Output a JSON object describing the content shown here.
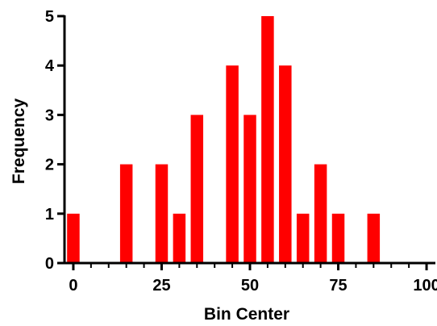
{
  "chart_data": {
    "type": "bar",
    "x": [
      0,
      5,
      10,
      15,
      20,
      25,
      30,
      35,
      40,
      45,
      50,
      55,
      60,
      65,
      70,
      75,
      80,
      85,
      90,
      95,
      100
    ],
    "values": [
      1,
      0,
      0,
      2,
      0,
      2,
      1,
      3,
      0,
      4,
      3,
      5,
      4,
      1,
      2,
      1,
      0,
      1,
      0,
      0,
      0
    ],
    "title": "",
    "xlabel": "Bin Center",
    "ylabel": "Frequency",
    "xlim": [
      -2.5,
      102.5
    ],
    "ylim": [
      0,
      5
    ],
    "x_ticks": [
      "0",
      "25",
      "50",
      "75",
      "100"
    ],
    "y_ticks": [
      "0",
      "1",
      "2",
      "3",
      "4",
      "5"
    ],
    "grid": false,
    "legend": "none",
    "bar_color": "#ff0000",
    "axis_color": "#000000"
  }
}
